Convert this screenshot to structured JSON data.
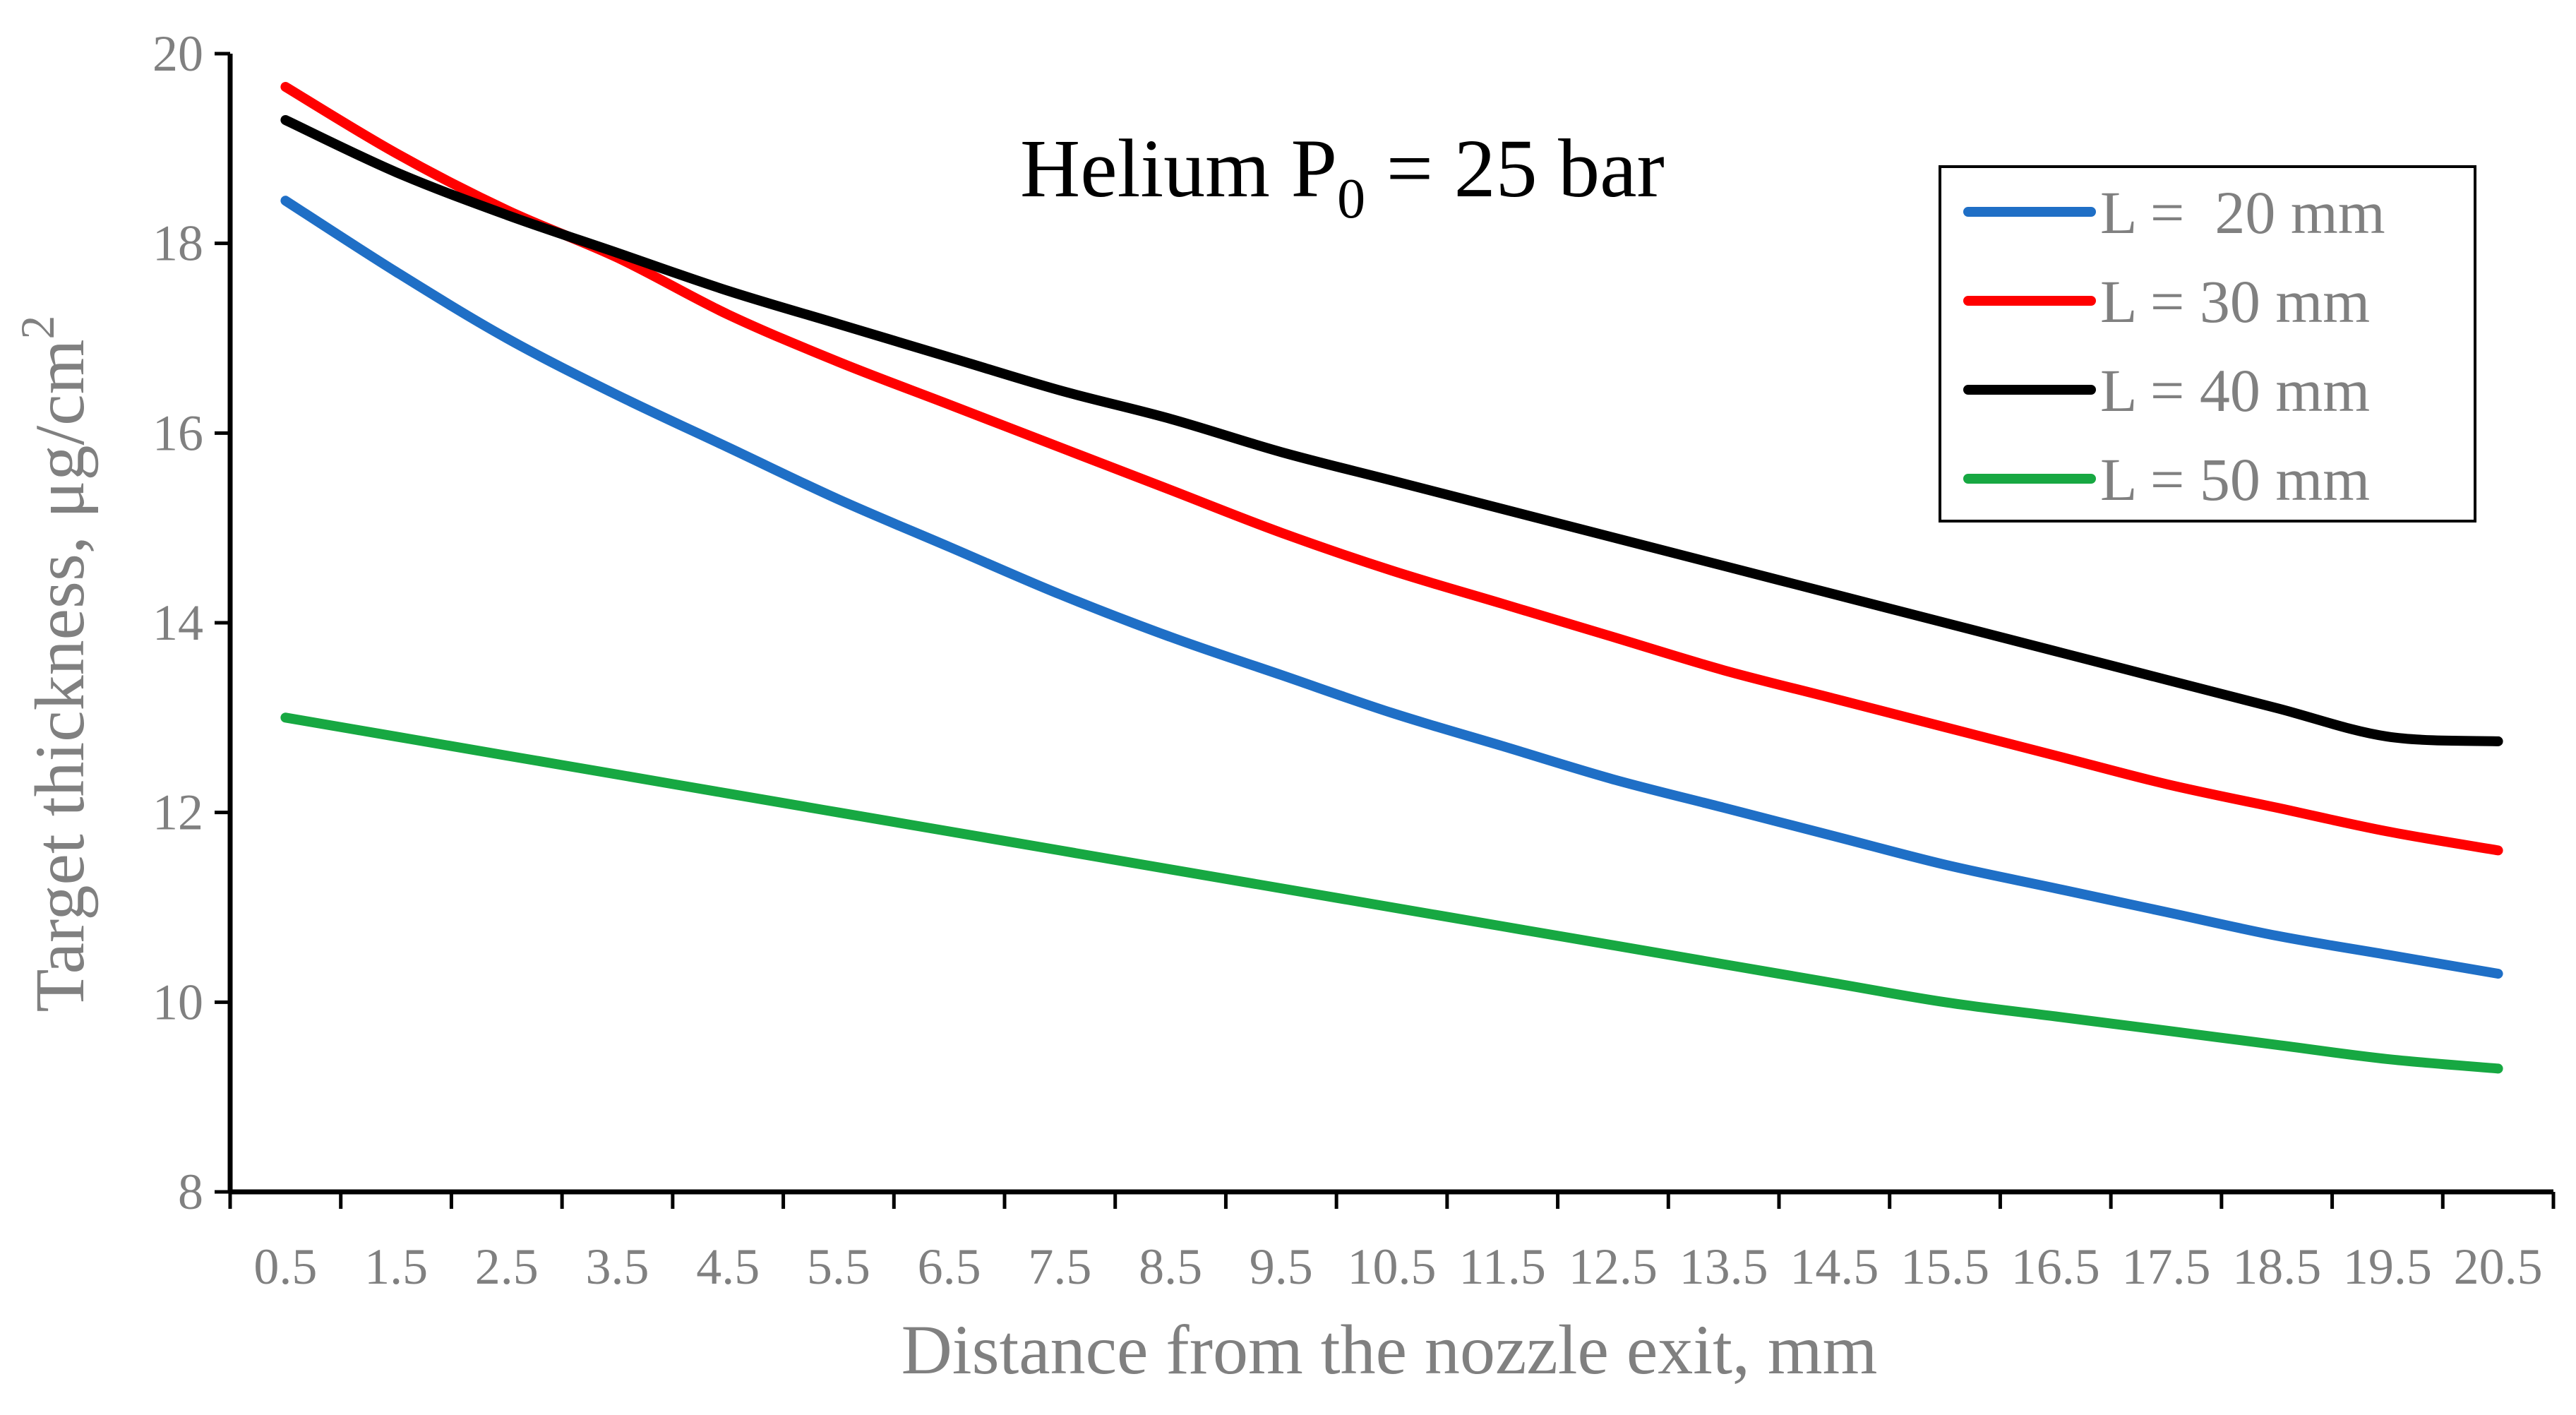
{
  "chart_data": {
    "type": "line",
    "title": "Helium P",
    "title_subscript": "0",
    "title_suffix": " = 25 bar",
    "xlabel": "Distance from the nozzle exit,  mm",
    "ylabel": "Target thickness,  μg/cm",
    "ylabel_superscript": "2",
    "xlim": [
      0,
      21
    ],
    "ylim": [
      8,
      20
    ],
    "yticks": [
      8,
      10,
      12,
      14,
      16,
      18,
      20
    ],
    "xticks": [
      0.5,
      1.5,
      2.5,
      3.5,
      4.5,
      5.5,
      6.5,
      7.5,
      8.5,
      9.5,
      10.5,
      11.5,
      12.5,
      13.5,
      14.5,
      15.5,
      16.5,
      17.5,
      18.5,
      19.5,
      20.5
    ],
    "xtick_labels": [
      "0.5",
      "1.5",
      "2.5",
      "3.5",
      "4.5",
      "5.5",
      "6.5",
      "7.5",
      "8.5",
      "9.5",
      "10.5",
      "11.5",
      "12.5",
      "13.5",
      "14.5",
      "15.5",
      "16.5",
      "17.5",
      "18.5",
      "19.5",
      "20.5"
    ],
    "legend_position": "top-right",
    "grid": false,
    "x": [
      0.5,
      1.5,
      2.5,
      3.5,
      4.5,
      5.5,
      6.5,
      7.5,
      8.5,
      9.5,
      10.5,
      11.5,
      12.5,
      13.5,
      14.5,
      15.5,
      16.5,
      17.5,
      18.5,
      19.5,
      20.5
    ],
    "series": [
      {
        "name": "L =  20 mm",
        "color": "#1f6fc6",
        "values": [
          18.45,
          17.7,
          17.0,
          16.4,
          15.85,
          15.3,
          14.8,
          14.3,
          13.85,
          13.45,
          13.05,
          12.7,
          12.35,
          12.05,
          11.75,
          11.45,
          11.2,
          10.95,
          10.7,
          10.5,
          10.3
        ]
      },
      {
        "name": "L = 30 mm",
        "color": "#ff0000",
        "values": [
          19.65,
          18.95,
          18.35,
          17.85,
          17.25,
          16.75,
          16.3,
          15.85,
          15.4,
          14.95,
          14.55,
          14.2,
          13.85,
          13.5,
          13.2,
          12.9,
          12.6,
          12.3,
          12.05,
          11.8,
          11.6
        ]
      },
      {
        "name": "L = 40 mm",
        "color": "#000000",
        "values": [
          19.3,
          18.75,
          18.3,
          17.9,
          17.5,
          17.15,
          16.8,
          16.45,
          16.15,
          15.8,
          15.5,
          15.2,
          14.9,
          14.6,
          14.3,
          14.0,
          13.7,
          13.4,
          13.1,
          12.8,
          12.75
        ]
      },
      {
        "name": "L = 50 mm",
        "color": "#17a842",
        "values": [
          13.0,
          12.8,
          12.6,
          12.4,
          12.2,
          12.0,
          11.8,
          11.6,
          11.4,
          11.2,
          11.0,
          10.8,
          10.6,
          10.4,
          10.2,
          10.0,
          9.85,
          9.7,
          9.55,
          9.4,
          9.3
        ]
      }
    ]
  }
}
